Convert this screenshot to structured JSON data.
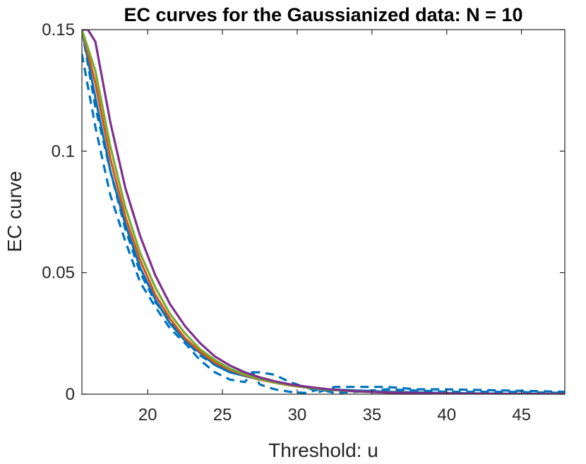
{
  "chart_data": {
    "type": "line",
    "title": "EC curves for the Gaussianized data: N = 10",
    "xlabel": "Threshold: u",
    "ylabel": "EC curve",
    "xlim": [
      15.6,
      47.9
    ],
    "ylim": [
      0,
      0.15
    ],
    "xticks": [
      20,
      25,
      30,
      35,
      40,
      45
    ],
    "xtick_labels": [
      "20",
      "25",
      "30",
      "35",
      "40",
      "45"
    ],
    "yticks": [
      0,
      0.05,
      0.1,
      0.15
    ],
    "ytick_labels": [
      "0",
      "0.05",
      "0.1",
      "0.15"
    ],
    "grid": false,
    "legend": "none",
    "series": [
      {
        "color": "#0072BD",
        "style": "dashed",
        "x": [
          15.6,
          16.5,
          17.5,
          18.5,
          19.5,
          20.5,
          21.5,
          22.5,
          23.5,
          24.5,
          25.5,
          26.5,
          27.0,
          27.5,
          28.5,
          29.5,
          30.5,
          31.5,
          32.5,
          34,
          36,
          40,
          44,
          47.9
        ],
        "y": [
          0.14,
          0.11,
          0.082,
          0.063,
          0.046,
          0.036,
          0.027,
          0.021,
          0.014,
          0.009,
          0.006,
          0.005,
          0.009,
          0.004,
          0.002,
          0.001,
          0.0005,
          0.002,
          0.0005,
          0.001,
          0.002,
          0.001,
          0.001,
          0.0005
        ]
      },
      {
        "color": "#0072BD",
        "style": "dashed",
        "x": [
          15.6,
          16.5,
          17.5,
          18.5,
          19.5,
          20.5,
          21.5,
          22.5,
          23.5,
          24.5,
          25.5,
          26.5,
          27.5,
          28.5,
          29.5,
          30.5,
          31.5,
          32.5,
          34,
          36,
          38,
          40,
          44,
          47.9
        ],
        "y": [
          0.15,
          0.118,
          0.092,
          0.068,
          0.05,
          0.038,
          0.03,
          0.022,
          0.016,
          0.012,
          0.009,
          0.009,
          0.009,
          0.008,
          0.005,
          0.003,
          0.001,
          0.003,
          0.003,
          0.003,
          0.002,
          0.002,
          0.0015,
          0.001
        ]
      },
      {
        "color": "#0072BD",
        "style": "solid",
        "x": [
          15.6,
          16.5,
          17.5,
          18.5,
          19.5,
          20.5,
          21.5,
          22.5,
          23.5,
          24.5,
          25.5,
          26.5,
          27.5,
          28.5,
          29.5,
          30.5,
          32,
          34,
          36,
          40,
          44,
          47.9
        ],
        "y": [
          0.15,
          0.122,
          0.092,
          0.07,
          0.052,
          0.039,
          0.029,
          0.022,
          0.017,
          0.012,
          0.009,
          0.0075,
          0.006,
          0.005,
          0.004,
          0.003,
          0.002,
          0.0015,
          0.001,
          0.0005,
          0.0002,
          0.0001
        ]
      },
      {
        "color": "#D95319",
        "style": "solid",
        "x": [
          15.6,
          16.5,
          17.5,
          18.5,
          19.5,
          20.5,
          21.5,
          22.5,
          23.5,
          24.5,
          25.5,
          26.5,
          27.5,
          28.5,
          29.5,
          30.5,
          32,
          34,
          36,
          40,
          44,
          47.9
        ],
        "y": [
          0.15,
          0.128,
          0.097,
          0.073,
          0.055,
          0.041,
          0.031,
          0.023,
          0.0175,
          0.013,
          0.01,
          0.0078,
          0.006,
          0.0047,
          0.0036,
          0.0028,
          0.0019,
          0.0011,
          0.0007,
          0.0003,
          0.0001,
          5e-05
        ]
      },
      {
        "color": "#77AC30",
        "style": "solid",
        "x": [
          15.6,
          16.5,
          17.5,
          18.5,
          19.5,
          20.5,
          21.5,
          22.5,
          23.5,
          24.5,
          25.5,
          26.5,
          27.5,
          28.5,
          29.5,
          30.5,
          32,
          34,
          36,
          40,
          44,
          47.9
        ],
        "y": [
          0.15,
          0.133,
          0.102,
          0.077,
          0.058,
          0.044,
          0.033,
          0.025,
          0.0185,
          0.014,
          0.0105,
          0.0081,
          0.0062,
          0.0048,
          0.0037,
          0.0029,
          0.0019,
          0.0011,
          0.0007,
          0.0003,
          0.0001,
          5e-05
        ]
      },
      {
        "color": "#7E2F8E",
        "style": "solid",
        "x": [
          15.6,
          16.0,
          16.5,
          17.5,
          18.5,
          19.5,
          20.5,
          21.5,
          22.5,
          23.5,
          24.5,
          25.5,
          26.5,
          27.5,
          28.5,
          29.5,
          30.5,
          32,
          34,
          36,
          40,
          44,
          47.9
        ],
        "y": [
          0.15,
          0.15,
          0.145,
          0.112,
          0.085,
          0.065,
          0.049,
          0.037,
          0.028,
          0.021,
          0.0155,
          0.0118,
          0.009,
          0.0069,
          0.0053,
          0.0041,
          0.0032,
          0.0021,
          0.0012,
          0.0007,
          0.0003,
          0.0001,
          5e-05
        ]
      }
    ]
  }
}
